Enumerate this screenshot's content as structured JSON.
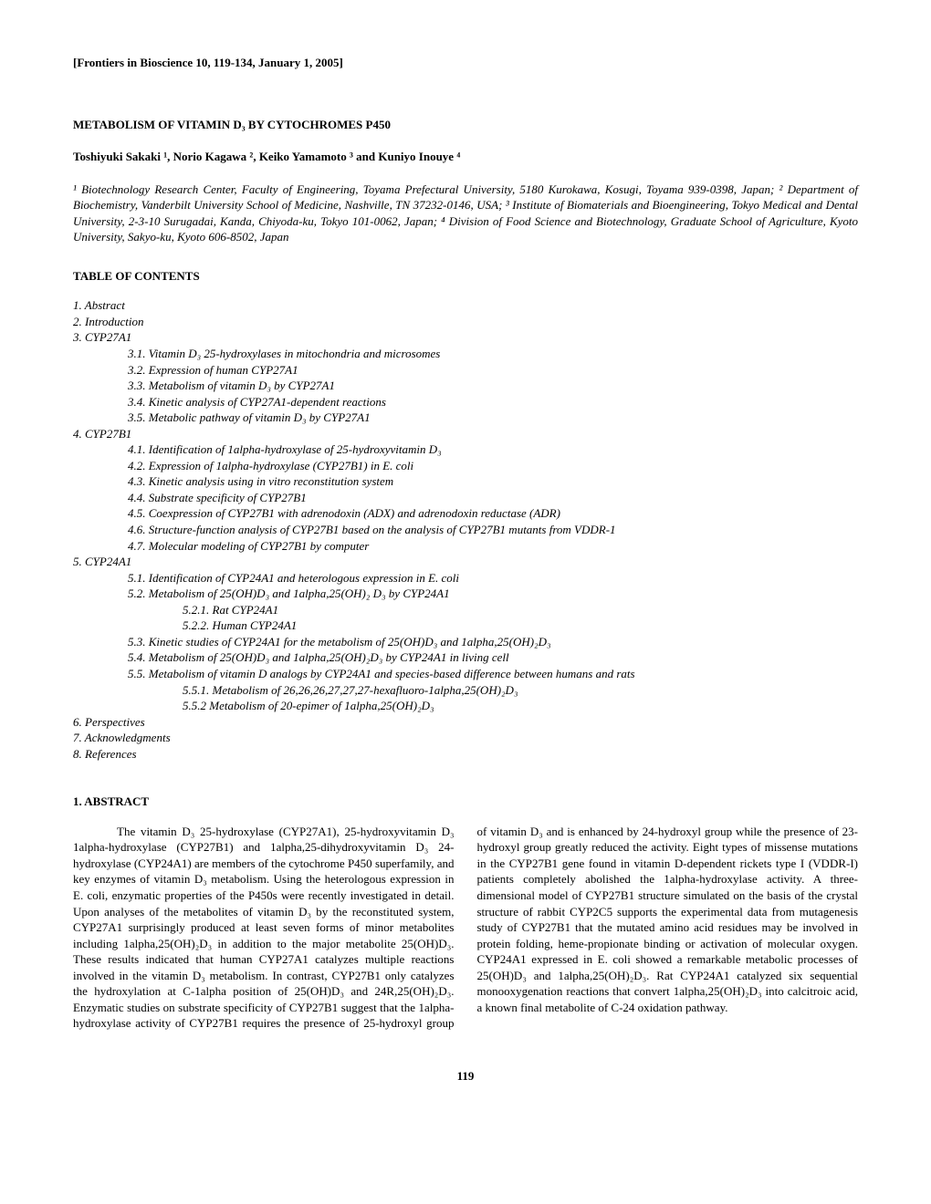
{
  "header": "[Frontiers in Bioscience 10, 119-134, January 1, 2005]",
  "title": "METABOLISM OF VITAMIN D₃ BY CYTOCHROMES P450",
  "authors": "Toshiyuki Sakaki ¹, Norio Kagawa ², Keiko Yamamoto ³ and Kuniyo Inouye ⁴",
  "affiliations": "¹ Biotechnology Research Center, Faculty of Engineering, Toyama Prefectural University, 5180 Kurokawa, Kosugi, Toyama 939-0398, Japan; ² Department of Biochemistry, Vanderbilt University School of Medicine, Nashville, TN 37232-0146, USA; ³ Institute of Biomaterials and Bioengineering, Tokyo Medical and Dental University, 2-3-10 Surugadai, Kanda, Chiyoda-ku, Tokyo 101-0062, Japan; ⁴ Division of Food Science and Biotechnology, Graduate School of Agriculture, Kyoto University, Sakyo-ku, Kyoto 606-8502, Japan",
  "toc_header": "TABLE OF CONTENTS",
  "toc": [
    {
      "text": "1. Abstract",
      "indent": 0
    },
    {
      "text": "2. Introduction",
      "indent": 0
    },
    {
      "text": "3. CYP27A1",
      "indent": 0
    },
    {
      "text": "3.1. Vitamin D₃ 25-hydroxylases in mitochondria and microsomes",
      "indent": 1
    },
    {
      "text": "3.2. Expression of human CYP27A1",
      "indent": 1
    },
    {
      "text": "3.3. Metabolism of vitamin D₃ by CYP27A1",
      "indent": 1
    },
    {
      "text": "3.4. Kinetic analysis of CYP27A1-dependent reactions",
      "indent": 1
    },
    {
      "text": "3.5. Metabolic pathway of vitamin D₃ by CYP27A1",
      "indent": 1
    },
    {
      "text": "4. CYP27B1",
      "indent": 0
    },
    {
      "text": "4.1. Identification of 1alpha-hydroxylase of 25-hydroxyvitamin D₃",
      "indent": 1
    },
    {
      "text": "4.2. Expression of 1alpha-hydroxylase (CYP27B1) in E. coli",
      "indent": 1
    },
    {
      "text": "4.3. Kinetic analysis using in vitro reconstitution system",
      "indent": 1
    },
    {
      "text": "4.4. Substrate specificity of CYP27B1",
      "indent": 1
    },
    {
      "text": "4.5. Coexpression of CYP27B1 with adrenodoxin (ADX) and adrenodoxin reductase (ADR)",
      "indent": 1
    },
    {
      "text": "4.6. Structure-function analysis of CYP27B1 based on the analysis of CYP27B1 mutants from VDDR-1",
      "indent": 1
    },
    {
      "text": "4.7. Molecular modeling of CYP27B1 by computer",
      "indent": 1
    },
    {
      "text": "5. CYP24A1",
      "indent": 0
    },
    {
      "text": "5.1. Identification of CYP24A1 and heterologous expression in E. coli",
      "indent": 1
    },
    {
      "text": "5.2. Metabolism of 25(OH)D₃ and 1alpha,25(OH)₂ D₃ by CYP24A1",
      "indent": 1
    },
    {
      "text": "5.2.1. Rat CYP24A1",
      "indent": 2
    },
    {
      "text": "5.2.2. Human CYP24A1",
      "indent": 2
    },
    {
      "text": "5.3. Kinetic studies of CYP24A1 for the metabolism of 25(OH)D₃ and 1alpha,25(OH)₂D₃",
      "indent": 1
    },
    {
      "text": "5.4. Metabolism of 25(OH)D₃ and 1alpha,25(OH)₂D₃ by CYP24A1 in living cell",
      "indent": 1
    },
    {
      "text": "5.5. Metabolism of vitamin D analogs by CYP24A1 and species-based difference between humans and rats",
      "indent": 1
    },
    {
      "text": "5.5.1. Metabolism of 26,26,26,27,27,27-hexafluoro-1alpha,25(OH)₂D₃",
      "indent": 2
    },
    {
      "text": "5.5.2 Metabolism of 20-epimer of 1alpha,25(OH)₂D₃",
      "indent": 2
    },
    {
      "text": "6. Perspectives",
      "indent": 0
    },
    {
      "text": "7. Acknowledgments",
      "indent": 0
    },
    {
      "text": "8. References",
      "indent": 0
    }
  ],
  "abstract_header": "1. ABSTRACT",
  "abstract_text": "The vitamin D₃ 25-hydroxylase (CYP27A1), 25-hydroxyvitamin D₃ 1alpha-hydroxylase (CYP27B1) and 1alpha,25-dihydroxyvitamin D₃ 24-hydroxylase (CYP24A1) are members of the cytochrome P450 superfamily, and key enzymes of vitamin D₃ metabolism. Using the heterologous expression in E. coli, enzymatic properties of the P450s were recently investigated in detail. Upon analyses of the metabolites of vitamin D₃ by the reconstituted system, CYP27A1 surprisingly produced at least seven forms of minor metabolites including 1alpha,25(OH)₂D₃ in addition to the major metabolite 25(OH)D₃. These results indicated that human CYP27A1 catalyzes multiple reactions involved in the vitamin D₃ metabolism. In contrast, CYP27B1 only catalyzes the hydroxylation at C-1alpha position of 25(OH)D₃ and 24R,25(OH)₂D₃. Enzymatic studies on substrate specificity of CYP27B1 suggest that the 1alpha-hydroxylase activity of CYP27B1 requires the presence of 25-hydroxyl group of vitamin D₃ and is enhanced by 24-hydroxyl group while the presence of 23-hydroxyl group greatly reduced the activity. Eight types of missense mutations in the CYP27B1 gene found in vitamin D-dependent rickets type I (VDDR-I) patients completely abolished the 1alpha-hydroxylase activity. A three-dimensional model of CYP27B1 structure simulated on the basis of the crystal structure of rabbit CYP2C5 supports the experimental data from mutagenesis study of CYP27B1 that the mutated amino acid residues may be involved in protein folding, heme-propionate binding or activation of molecular oxygen. CYP24A1 expressed in E. coli showed a remarkable metabolic processes of 25(OH)D₃ and 1alpha,25(OH)₂D₃. Rat CYP24A1 catalyzed six sequential monooxygenation reactions that convert 1alpha,25(OH)₂D₃ into calcitroic acid, a known final metabolite of C-24 oxidation pathway.",
  "page_number": "119"
}
